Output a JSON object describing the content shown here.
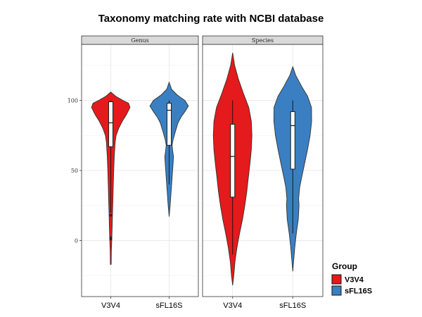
{
  "chart_data": {
    "type": "violin",
    "title": "Taxonomy matching rate with NCBI database",
    "xlabel": "",
    "ylabel": "",
    "ylim": [
      -40,
      140
    ],
    "y_ticks": [
      0,
      50,
      100
    ],
    "grid": true,
    "legend": {
      "title": "Group",
      "position": "right-bottom",
      "entries": [
        {
          "label": "V3V4",
          "color": "#e41a1c"
        },
        {
          "label": "sFL16S",
          "color": "#3a7fc1"
        }
      ]
    },
    "facets": [
      {
        "label": "Genus",
        "categories": [
          "V3V4",
          "sFL16S"
        ],
        "violins": [
          {
            "group": "V3V4",
            "color": "#e41a1c",
            "density": [
              [
                -17,
                0.02
              ],
              [
                -8,
                0.03
              ],
              [
                0,
                0.05
              ],
              [
                10,
                0.07
              ],
              [
                20,
                0.09
              ],
              [
                30,
                0.11
              ],
              [
                40,
                0.13
              ],
              [
                50,
                0.15
              ],
              [
                60,
                0.18
              ],
              [
                70,
                0.22
              ],
              [
                75,
                0.27
              ],
              [
                80,
                0.4
              ],
              [
                85,
                0.58
              ],
              [
                90,
                0.8
              ],
              [
                95,
                0.98
              ],
              [
                98,
                0.9
              ],
              [
                100,
                0.62
              ],
              [
                103,
                0.25
              ],
              [
                106,
                0
              ]
            ],
            "box": {
              "q1": 67,
              "median": 84,
              "q3": 99,
              "whisker_low": 20,
              "whisker_high": 100
            },
            "outliers": [
              18,
              2,
              1
            ]
          },
          {
            "group": "sFL16S",
            "color": "#3a7fc1",
            "density": [
              [
                17,
                0
              ],
              [
                25,
                0.05
              ],
              [
                35,
                0.1
              ],
              [
                45,
                0.15
              ],
              [
                55,
                0.2
              ],
              [
                60,
                0.22
              ],
              [
                64,
                0.18
              ],
              [
                68,
                0.15
              ],
              [
                72,
                0.2
              ],
              [
                78,
                0.32
              ],
              [
                84,
                0.45
              ],
              [
                88,
                0.6
              ],
              [
                92,
                0.8
              ],
              [
                96,
                0.98
              ],
              [
                100,
                0.8
              ],
              [
                104,
                0.4
              ],
              [
                108,
                0.12
              ],
              [
                113,
                0
              ]
            ],
            "box": {
              "q1": 68,
              "median": 93,
              "q3": 98,
              "whisker_low": 40,
              "whisker_high": 100
            },
            "outliers": []
          }
        ]
      },
      {
        "label": "Species",
        "categories": [
          "V3V4",
          "sFL16S"
        ],
        "violins": [
          {
            "group": "V3V4",
            "color": "#e41a1c",
            "density": [
              [
                -32,
                0
              ],
              [
                -25,
                0.06
              ],
              [
                -15,
                0.12
              ],
              [
                -5,
                0.22
              ],
              [
                5,
                0.35
              ],
              [
                15,
                0.5
              ],
              [
                25,
                0.62
              ],
              [
                35,
                0.72
              ],
              [
                45,
                0.8
              ],
              [
                55,
                0.88
              ],
              [
                65,
                0.95
              ],
              [
                75,
                0.98
              ],
              [
                85,
                0.95
              ],
              [
                95,
                0.82
              ],
              [
                105,
                0.55
              ],
              [
                115,
                0.3
              ],
              [
                125,
                0.1
              ],
              [
                134,
                0
              ]
            ],
            "box": {
              "q1": 31,
              "median": 60,
              "q3": 83,
              "whisker_low": -10,
              "whisker_high": 100
            },
            "outliers": []
          },
          {
            "group": "sFL16S",
            "color": "#3a7fc1",
            "density": [
              [
                -22,
                0
              ],
              [
                -15,
                0.04
              ],
              [
                -5,
                0.1
              ],
              [
                5,
                0.18
              ],
              [
                15,
                0.28
              ],
              [
                25,
                0.32
              ],
              [
                30,
                0.3
              ],
              [
                38,
                0.35
              ],
              [
                45,
                0.45
              ],
              [
                55,
                0.6
              ],
              [
                65,
                0.75
              ],
              [
                75,
                0.88
              ],
              [
                85,
                0.96
              ],
              [
                95,
                0.95
              ],
              [
                103,
                0.75
              ],
              [
                110,
                0.45
              ],
              [
                118,
                0.15
              ],
              [
                124,
                0
              ]
            ],
            "box": {
              "q1": 51,
              "median": 82,
              "q3": 92,
              "whisker_low": 5,
              "whisker_high": 100
            },
            "outliers": []
          }
        ]
      }
    ]
  }
}
